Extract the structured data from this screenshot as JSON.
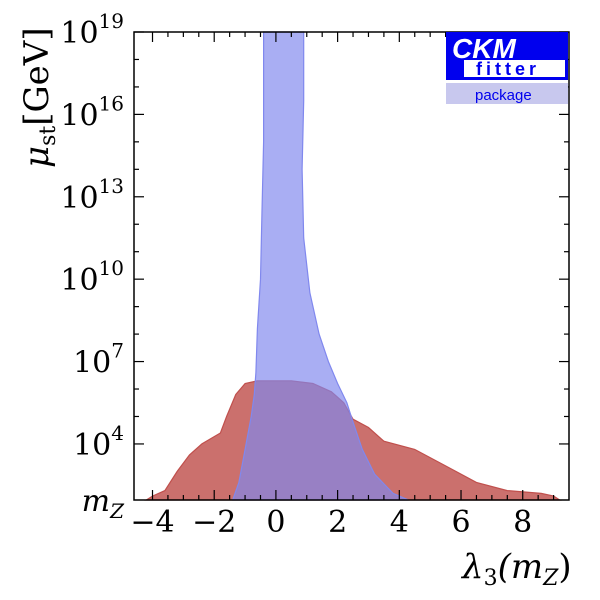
{
  "chart_data": {
    "type": "area",
    "xlabel": {
      "main": "λ",
      "sub": "3",
      "arg": "(m",
      "argsub": "Z",
      "close": ")"
    },
    "ylabel": {
      "main": "μ",
      "sub": "st",
      "unit": "[GeV]"
    },
    "xlim": [
      -4.6,
      9.5
    ],
    "ylim_log10": [
      1.959,
      19
    ],
    "y_scale": "log",
    "xticks": [
      {
        "v": -4,
        "label": "−4"
      },
      {
        "v": -2,
        "label": "−2"
      },
      {
        "v": 0,
        "label": "0"
      },
      {
        "v": 2,
        "label": "2"
      },
      {
        "v": 4,
        "label": "4"
      },
      {
        "v": 6,
        "label": "6"
      },
      {
        "v": 8,
        "label": "8"
      }
    ],
    "yticks": [
      {
        "v": 1.959,
        "base": "m",
        "sub": "Z",
        "sup": ""
      },
      {
        "v": 4,
        "base": "10",
        "sub": "",
        "sup": "4"
      },
      {
        "v": 7,
        "base": "10",
        "sub": "",
        "sup": "7"
      },
      {
        "v": 10,
        "base": "10",
        "sub": "",
        "sup": "10"
      },
      {
        "v": 13,
        "base": "10",
        "sub": "",
        "sup": "13"
      },
      {
        "v": 16,
        "base": "10",
        "sub": "",
        "sup": "16"
      },
      {
        "v": 19,
        "base": "10",
        "sub": "",
        "sup": "19"
      }
    ],
    "grid": false,
    "series": [
      {
        "color": "#c0504d",
        "points": [
          [
            -4.2,
            1.959
          ],
          [
            -4.0,
            2.1
          ],
          [
            -3.6,
            2.3
          ],
          [
            -3.2,
            3.0
          ],
          [
            -2.8,
            3.6
          ],
          [
            -2.4,
            4.0
          ],
          [
            -1.8,
            4.4
          ],
          [
            -1.6,
            5.0
          ],
          [
            -1.3,
            5.8
          ],
          [
            -1.0,
            6.2
          ],
          [
            -0.6,
            6.3
          ],
          [
            0.5,
            6.3
          ],
          [
            1.2,
            6.2
          ],
          [
            1.8,
            5.9
          ],
          [
            2.2,
            5.5
          ],
          [
            2.5,
            4.9
          ],
          [
            3.0,
            4.6
          ],
          [
            3.5,
            4.1
          ],
          [
            4.5,
            3.8
          ],
          [
            5.5,
            3.2
          ],
          [
            6.5,
            2.6
          ],
          [
            7.5,
            2.3
          ],
          [
            8.6,
            2.2
          ],
          [
            9.0,
            2.1
          ],
          [
            9.2,
            1.959
          ]
        ]
      },
      {
        "color": "#8088ee",
        "points": [
          [
            -1.4,
            1.959
          ],
          [
            -1.2,
            2.6
          ],
          [
            -1.0,
            3.8
          ],
          [
            -0.8,
            5.0
          ],
          [
            -0.7,
            5.8
          ],
          [
            -0.65,
            6.6
          ],
          [
            -0.6,
            8.2
          ],
          [
            -0.5,
            10.0
          ],
          [
            -0.45,
            12.5
          ],
          [
            -0.4,
            15.0
          ],
          [
            -0.4,
            19
          ],
          [
            0.9,
            19
          ],
          [
            0.9,
            16.5
          ],
          [
            0.85,
            14.0
          ],
          [
            0.9,
            11.5
          ],
          [
            1.1,
            9.5
          ],
          [
            1.4,
            8.0
          ],
          [
            1.7,
            7.0
          ],
          [
            2.0,
            6.2
          ],
          [
            2.3,
            5.5
          ],
          [
            2.5,
            4.8
          ],
          [
            2.8,
            3.8
          ],
          [
            3.2,
            2.9
          ],
          [
            3.8,
            2.2
          ],
          [
            4.3,
            1.959
          ]
        ]
      }
    ]
  },
  "logo": {
    "line1": "CKM",
    "line2": "fitter",
    "line3": "package"
  }
}
